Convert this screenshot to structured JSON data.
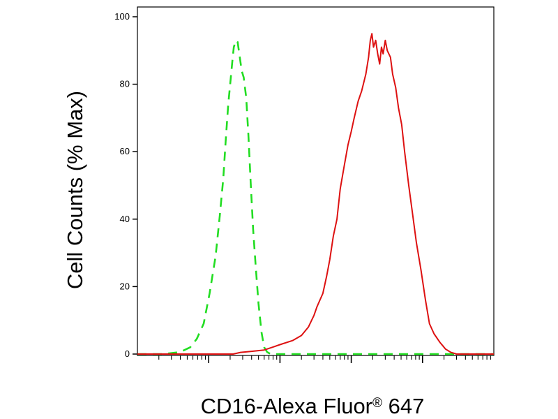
{
  "chart_data": {
    "type": "line",
    "title": "",
    "xlabel": "CD16-Alexa Fluor",
    "xlabel_sup": "®",
    "xlabel_suffix": " 647",
    "ylabel": "Cell Counts (% Max)",
    "x_scale": "log",
    "xlim": [
      1,
      100000
    ],
    "ylim": [
      0,
      100
    ],
    "y_ticks": [
      0,
      20,
      40,
      60,
      80,
      100
    ],
    "y_tick_labels": [
      "0",
      "20",
      "40",
      "60",
      "80",
      "100"
    ],
    "x_tick_labels_shown": false,
    "grid": false,
    "legend": "none",
    "series": [
      {
        "style": "dashed",
        "color": "#22dd22",
        "points": [
          [
            1,
            0
          ],
          [
            2.3,
            0
          ],
          [
            4,
            0.6
          ],
          [
            5.5,
            2
          ],
          [
            6.8,
            4.5
          ],
          [
            8.5,
            9
          ],
          [
            10.3,
            18
          ],
          [
            12.5,
            29
          ],
          [
            14.3,
            41
          ],
          [
            16,
            52
          ],
          [
            17.3,
            63
          ],
          [
            18.8,
            74
          ],
          [
            20,
            80
          ],
          [
            21.5,
            87
          ],
          [
            22.5,
            91
          ],
          [
            24,
            93
          ],
          [
            25.5,
            92.5
          ],
          [
            27.3,
            88
          ],
          [
            29,
            84
          ],
          [
            31,
            82
          ],
          [
            33.6,
            76
          ],
          [
            36,
            65
          ],
          [
            39,
            50
          ],
          [
            42,
            37
          ],
          [
            45.7,
            26
          ],
          [
            50,
            15
          ],
          [
            55,
            6.5
          ],
          [
            60,
            2
          ],
          [
            66,
            0.6
          ],
          [
            74,
            0
          ],
          [
            100000,
            0
          ]
        ]
      },
      {
        "style": "solid",
        "color": "#dd1111",
        "points": [
          [
            1,
            0
          ],
          [
            15,
            0
          ],
          [
            22,
            0
          ],
          [
            28,
            0.5
          ],
          [
            40,
            0.8
          ],
          [
            60,
            1.2
          ],
          [
            80,
            2.1
          ],
          [
            100,
            2.8
          ],
          [
            150,
            4
          ],
          [
            200,
            5.5
          ],
          [
            250,
            8
          ],
          [
            300,
            11.5
          ],
          [
            330,
            14
          ],
          [
            400,
            18
          ],
          [
            450,
            23
          ],
          [
            500,
            28
          ],
          [
            560,
            35
          ],
          [
            630,
            40
          ],
          [
            700,
            49
          ],
          [
            800,
            56
          ],
          [
            900,
            62
          ],
          [
            1000,
            66
          ],
          [
            1100,
            70
          ],
          [
            1250,
            75
          ],
          [
            1400,
            78
          ],
          [
            1600,
            83
          ],
          [
            1750,
            88
          ],
          [
            1850,
            93
          ],
          [
            1950,
            95
          ],
          [
            2050,
            91
          ],
          [
            2200,
            93
          ],
          [
            2350,
            89
          ],
          [
            2500,
            86
          ],
          [
            2650,
            91
          ],
          [
            2800,
            89
          ],
          [
            3000,
            93
          ],
          [
            3200,
            90
          ],
          [
            3550,
            88
          ],
          [
            3800,
            83
          ],
          [
            4200,
            79
          ],
          [
            4600,
            73
          ],
          [
            5100,
            68
          ],
          [
            5600,
            60
          ],
          [
            6400,
            50
          ],
          [
            7200,
            42
          ],
          [
            8200,
            33
          ],
          [
            9500,
            25
          ],
          [
            11000,
            16
          ],
          [
            12500,
            9
          ],
          [
            14500,
            6
          ],
          [
            17500,
            3.5
          ],
          [
            21000,
            1.5
          ],
          [
            25000,
            0.5
          ],
          [
            30000,
            0
          ],
          [
            100000,
            0
          ]
        ]
      }
    ]
  }
}
